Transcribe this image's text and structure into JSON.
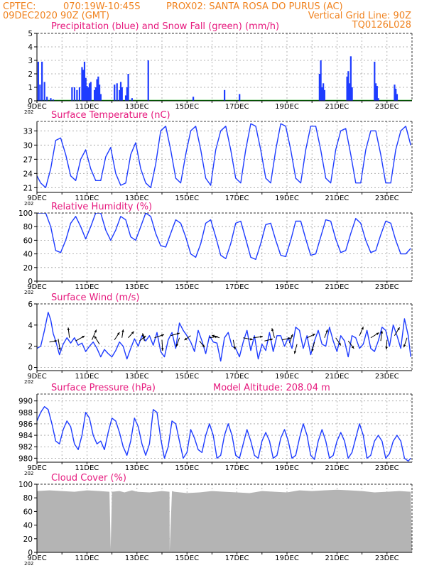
{
  "header": {
    "line1_left": "CPTEC:",
    "line1_coords": "070:19W-10:45S",
    "line1_station": "PROX02: SANTA ROSA DO PURUS (AC)",
    "line2_left": "09DEC2020 90Z (GMT)",
    "line2_right": "Vertical Grid Line: 90Z",
    "line3_right": "TQ0126L028"
  },
  "colors": {
    "header": "#f0821e",
    "panel_title": "#e6197d",
    "series": "#1e3cff",
    "snow": "#00a000",
    "cloud": "#b4b4b4",
    "arrow": "#000000",
    "grid": "#a0a0a0"
  },
  "x_axis": {
    "labels": [
      "9DEC",
      "11DEC",
      "13DEC",
      "15DEC",
      "17DEC",
      "19DEC",
      "21DEC",
      "23DEC"
    ],
    "year_fragment": "202"
  },
  "panels": {
    "precip": {
      "title": "Precipitation (blue) and Snow Fall (green) (mm/h)"
    },
    "temp": {
      "title": "Surface Temperature (nC)"
    },
    "rh": {
      "title": "Relative Humidity (%)"
    },
    "wind": {
      "title": "Surface Wind (m/s)"
    },
    "press": {
      "title": "Surface Pressure (hPa)",
      "subtitle": "Model Altitude: 208.04 m"
    },
    "cloud": {
      "title": "Cloud Cover (%)"
    }
  },
  "chart_data": [
    {
      "id": "precip",
      "type": "bar",
      "title": "Precipitation (blue) and Snow Fall (green) (mm/h)",
      "ylim": [
        0,
        5
      ],
      "yticks": [
        0,
        1,
        2,
        3,
        4,
        5
      ],
      "x_unit": "day offset from 09DEC 00Z",
      "x": [
        0.05,
        0.12,
        0.2,
        0.3,
        0.4,
        0.55,
        0.65,
        1.4,
        1.5,
        1.6,
        1.7,
        1.8,
        1.85,
        1.9,
        1.95,
        2.0,
        2.05,
        2.1,
        2.15,
        2.3,
        2.35,
        2.4,
        2.45,
        2.5,
        2.55,
        3.1,
        3.2,
        3.3,
        3.35,
        3.4,
        3.55,
        3.6,
        3.65,
        3.8,
        4.45,
        6.25,
        7.5,
        8.1,
        11.3,
        11.35,
        11.4,
        11.45,
        11.5,
        12.4,
        12.45,
        12.5,
        12.55,
        12.6,
        13.5,
        13.55,
        13.6,
        13.65,
        14.3,
        14.35,
        14.4
      ],
      "precip": [
        2.9,
        1.2,
        2.9,
        1.4,
        0.3,
        0.2,
        0.1,
        1.0,
        1.0,
        0.8,
        1.0,
        2.5,
        2.3,
        2.9,
        1.7,
        1.1,
        1.0,
        1.3,
        1.4,
        0.8,
        1.0,
        1.6,
        1.8,
        1.2,
        0.5,
        1.2,
        1.3,
        0.8,
        1.4,
        1.0,
        0.4,
        1.0,
        2.0,
        0.2,
        3.0,
        0.3,
        0.8,
        0.5,
        2.0,
        3.0,
        1.0,
        1.3,
        0.8,
        1.8,
        2.2,
        1.3,
        3.3,
        1.0,
        2.9,
        1.3,
        1.1,
        0.2,
        1.2,
        0.9,
        0.5
      ],
      "snow": []
    },
    {
      "id": "temp",
      "type": "line",
      "title": "Surface Temperature (nC)",
      "ylim": [
        20,
        35
      ],
      "yticks": [
        21,
        24,
        27,
        30,
        33
      ],
      "x_unit": "day offset from 09DEC 00Z",
      "x": [
        0,
        0.15,
        0.35,
        0.55,
        0.75,
        0.95,
        1.15,
        1.35,
        1.55,
        1.75,
        1.95,
        2.15,
        2.35,
        2.55,
        2.75,
        2.95,
        3.15,
        3.35,
        3.55,
        3.75,
        3.95,
        4.15,
        4.35,
        4.55,
        4.75,
        4.95,
        5.15,
        5.35,
        5.55,
        5.75,
        5.95,
        6.15,
        6.35,
        6.55,
        6.75,
        6.95,
        7.15,
        7.35,
        7.55,
        7.75,
        7.95,
        8.15,
        8.35,
        8.55,
        8.75,
        8.95,
        9.15,
        9.35,
        9.55,
        9.75,
        9.95,
        10.15,
        10.35,
        10.55,
        10.75,
        10.95,
        11.15,
        11.35,
        11.55,
        11.75,
        11.95,
        12.15,
        12.35,
        12.55,
        12.75,
        12.95,
        13.15,
        13.35,
        13.55,
        13.75,
        13.95,
        14.15,
        14.35,
        14.55,
        14.75,
        14.95
      ],
      "y": [
        23.5,
        22,
        21,
        25,
        31,
        31.5,
        28,
        23.5,
        22.5,
        27,
        29,
        25,
        22.5,
        22.5,
        27.5,
        29.5,
        24,
        21.5,
        22,
        28,
        30.5,
        25,
        22,
        21,
        26,
        33,
        34,
        29,
        23,
        22,
        28,
        33,
        34,
        29,
        23,
        21.5,
        29,
        33,
        34,
        29,
        23,
        22,
        29,
        34.5,
        34,
        29,
        23,
        22,
        29,
        34.5,
        34,
        29,
        23,
        22,
        29,
        34,
        34,
        29,
        23,
        22,
        29,
        33,
        33.5,
        28,
        22,
        22,
        29,
        33,
        33,
        28,
        22,
        22,
        29,
        33,
        34,
        30
      ]
    },
    {
      "id": "rh",
      "type": "line",
      "title": "Relative Humidity (%)",
      "ylim": [
        0,
        100
      ],
      "yticks": [
        0,
        20,
        40,
        60,
        80,
        100
      ],
      "x_unit": "day offset from 09DEC 00Z",
      "x": [
        0,
        0.15,
        0.35,
        0.55,
        0.75,
        0.95,
        1.15,
        1.35,
        1.55,
        1.75,
        1.95,
        2.15,
        2.35,
        2.55,
        2.75,
        2.95,
        3.15,
        3.35,
        3.55,
        3.75,
        3.95,
        4.15,
        4.35,
        4.55,
        4.75,
        4.95,
        5.15,
        5.35,
        5.55,
        5.75,
        5.95,
        6.15,
        6.35,
        6.55,
        6.75,
        6.95,
        7.15,
        7.35,
        7.55,
        7.75,
        7.95,
        8.15,
        8.35,
        8.55,
        8.75,
        8.95,
        9.15,
        9.35,
        9.55,
        9.75,
        9.95,
        10.15,
        10.35,
        10.55,
        10.75,
        10.95,
        11.15,
        11.35,
        11.55,
        11.75,
        11.95,
        12.15,
        12.35,
        12.55,
        12.75,
        12.95,
        13.15,
        13.35,
        13.55,
        13.75,
        13.95,
        14.15,
        14.35,
        14.55,
        14.75,
        14.95
      ],
      "y": [
        100,
        100,
        100,
        80,
        45,
        42,
        60,
        85,
        95,
        80,
        62,
        80,
        100,
        100,
        75,
        60,
        75,
        95,
        90,
        65,
        60,
        80,
        100,
        95,
        70,
        52,
        50,
        70,
        90,
        85,
        65,
        40,
        35,
        55,
        85,
        90,
        65,
        38,
        33,
        55,
        85,
        88,
        62,
        35,
        32,
        55,
        83,
        85,
        60,
        38,
        36,
        60,
        88,
        88,
        62,
        38,
        40,
        65,
        90,
        88,
        62,
        42,
        45,
        70,
        92,
        85,
        60,
        42,
        45,
        68,
        88,
        85,
        60,
        40,
        40,
        48
      ]
    },
    {
      "id": "wind",
      "type": "line",
      "title": "Surface Wind (m/s)",
      "ylim": [
        -0.3,
        6
      ],
      "yticks": [
        0,
        2,
        4,
        6
      ],
      "x_unit": "day offset from 09DEC 00Z",
      "x": [
        0,
        0.15,
        0.3,
        0.45,
        0.55,
        0.65,
        0.75,
        0.9,
        1.05,
        1.2,
        1.35,
        1.5,
        1.65,
        1.8,
        1.95,
        2.1,
        2.25,
        2.4,
        2.55,
        2.7,
        2.85,
        3.0,
        3.15,
        3.3,
        3.45,
        3.6,
        3.75,
        3.9,
        4.05,
        4.2,
        4.35,
        4.5,
        4.65,
        4.8,
        4.95,
        5.1,
        5.25,
        5.4,
        5.55,
        5.7,
        5.85,
        6.0,
        6.15,
        6.3,
        6.45,
        6.6,
        6.75,
        6.9,
        7.05,
        7.2,
        7.35,
        7.5,
        7.65,
        7.8,
        7.95,
        8.1,
        8.25,
        8.4,
        8.55,
        8.7,
        8.85,
        9.0,
        9.15,
        9.3,
        9.45,
        9.6,
        9.75,
        9.9,
        10.05,
        10.2,
        10.35,
        10.5,
        10.65,
        10.8,
        10.95,
        11.1,
        11.25,
        11.4,
        11.55,
        11.7,
        11.85,
        12.0,
        12.15,
        12.3,
        12.45,
        12.6,
        12.75,
        12.9,
        13.05,
        13.2,
        13.35,
        13.5,
        13.65,
        13.8,
        13.95,
        14.1,
        14.25,
        14.4,
        14.55,
        14.7,
        14.85,
        14.95
      ],
      "y": [
        1.8,
        2.0,
        3.5,
        5.2,
        4.5,
        3.2,
        2.5,
        1.2,
        2.2,
        2.8,
        2.3,
        2.8,
        2.1,
        2.3,
        1.5,
        2.0,
        2.4,
        1.8,
        1.0,
        1.7,
        1.3,
        1.0,
        1.6,
        2.4,
        2.0,
        0.8,
        1.8,
        2.7,
        2.0,
        3.0,
        2.5,
        3.0,
        2.1,
        3.3,
        1.5,
        1.0,
        2.6,
        3.3,
        1.8,
        4.2,
        3.5,
        3.0,
        2.4,
        1.5,
        3.5,
        2.5,
        1.3,
        3.0,
        2.4,
        2.3,
        0.6,
        2.8,
        3.3,
        2.0,
        1.8,
        1.0,
        2.4,
        3.5,
        1.6,
        3.0,
        0.8,
        2.2,
        1.6,
        3.3,
        1.5,
        3.0,
        3.0,
        2.0,
        2.8,
        1.8,
        3.8,
        3.5,
        1.8,
        3.0,
        1.2,
        2.5,
        3.5,
        2.2,
        2.0,
        3.8,
        2.5,
        1.5,
        3.0,
        2.5,
        1.0,
        3.0,
        2.8,
        1.8,
        2.2,
        3.5,
        1.8,
        1.5,
        2.5,
        3.8,
        3.5,
        2.0,
        4.0,
        3.0,
        1.8,
        4.6,
        3.0,
        1.0
      ],
      "barbs": [
        {
          "x": 0.5,
          "y": 2.4,
          "u": 1.2,
          "v": 0.2
        },
        {
          "x": 0.85,
          "y": 2.7,
          "u": 0.3,
          "v": -1.8
        },
        {
          "x": 1.3,
          "y": 2.8,
          "u": -0.2,
          "v": 1.6
        },
        {
          "x": 1.55,
          "y": 2.5,
          "u": 1.4,
          "v": 0.8
        },
        {
          "x": 2.2,
          "y": 2.6,
          "u": 0.7,
          "v": 1.6
        },
        {
          "x": 2.5,
          "y": 2.2,
          "u": -0.8,
          "v": 1.3
        },
        {
          "x": 3.1,
          "y": 2.6,
          "u": 0.8,
          "v": 1.2
        },
        {
          "x": 3.4,
          "y": 2.8,
          "u": 0.2,
          "v": 1.3
        },
        {
          "x": 3.65,
          "y": 2.8,
          "u": 0.9,
          "v": 1.0
        },
        {
          "x": 4.1,
          "y": 2.5,
          "u": 1.0,
          "v": 0.8
        },
        {
          "x": 4.3,
          "y": 2.5,
          "u": -0.3,
          "v": 1.2
        },
        {
          "x": 4.7,
          "y": 2.8,
          "u": 1.5,
          "v": 0.5
        },
        {
          "x": 5.0,
          "y": 2.6,
          "u": 0.1,
          "v": -1.7
        },
        {
          "x": 5.35,
          "y": 3.0,
          "u": 1.4,
          "v": 0.4
        },
        {
          "x": 5.7,
          "y": 2.8,
          "u": -0.5,
          "v": -1.4
        },
        {
          "x": 6.15,
          "y": 3.0,
          "u": -1.0,
          "v": -0.7
        },
        {
          "x": 6.5,
          "y": 2.5,
          "u": 0.8,
          "v": -1.0
        },
        {
          "x": 6.9,
          "y": 2.8,
          "u": 1.3,
          "v": 0.2
        },
        {
          "x": 7.3,
          "y": 2.8,
          "u": -1.2,
          "v": 0.4
        },
        {
          "x": 7.85,
          "y": 2.6,
          "u": 0.3,
          "v": -1.5
        },
        {
          "x": 8.25,
          "y": 2.8,
          "u": 1.5,
          "v": -0.3
        },
        {
          "x": 8.65,
          "y": 2.8,
          "u": 1.5,
          "v": 0.2
        },
        {
          "x": 9.1,
          "y": 2.5,
          "u": 1.3,
          "v": 0.3
        },
        {
          "x": 9.5,
          "y": 2.8,
          "u": -0.4,
          "v": 1.5
        },
        {
          "x": 9.8,
          "y": 2.6,
          "u": 1.4,
          "v": 0.3
        },
        {
          "x": 10.1,
          "y": 2.3,
          "u": 0.5,
          "v": 1.4
        },
        {
          "x": 10.4,
          "y": 2.2,
          "u": -0.4,
          "v": -1.5
        },
        {
          "x": 10.8,
          "y": 2.8,
          "u": 1.3,
          "v": 0.6
        },
        {
          "x": 11.1,
          "y": 2.4,
          "u": -0.4,
          "v": -1.5
        },
        {
          "x": 11.5,
          "y": 2.8,
          "u": 0.5,
          "v": 1.3
        },
        {
          "x": 11.95,
          "y": 2.8,
          "u": 0.8,
          "v": -1.2
        },
        {
          "x": 12.45,
          "y": 2.5,
          "u": 0.9,
          "v": -1.2
        },
        {
          "x": 12.9,
          "y": 3.0,
          "u": 0.6,
          "v": 1.4
        },
        {
          "x": 13.35,
          "y": 2.8,
          "u": 1.3,
          "v": 0.8
        },
        {
          "x": 13.75,
          "y": 2.5,
          "u": 0.2,
          "v": 1.6
        },
        {
          "x": 14.0,
          "y": 2.6,
          "u": -0.1,
          "v": -1.5
        },
        {
          "x": 14.3,
          "y": 3.0,
          "u": 0.8,
          "v": 1.3
        },
        {
          "x": 14.8,
          "y": 2.8,
          "u": -0.5,
          "v": -1.5
        }
      ]
    },
    {
      "id": "press",
      "type": "line",
      "title": "Surface Pressure (hPa)",
      "ylim": [
        979.3,
        991.2
      ],
      "yticks": [
        980,
        982,
        984,
        986,
        988,
        990
      ],
      "x_unit": "day offset from 09DEC 00Z",
      "x": [
        0,
        0.15,
        0.3,
        0.45,
        0.6,
        0.75,
        0.9,
        1.05,
        1.2,
        1.35,
        1.5,
        1.65,
        1.8,
        1.95,
        2.1,
        2.25,
        2.4,
        2.55,
        2.7,
        2.85,
        3.0,
        3.15,
        3.3,
        3.45,
        3.6,
        3.75,
        3.9,
        4.05,
        4.2,
        4.35,
        4.5,
        4.65,
        4.8,
        4.95,
        5.1,
        5.25,
        5.4,
        5.55,
        5.7,
        5.85,
        6.0,
        6.15,
        6.3,
        6.45,
        6.6,
        6.75,
        6.9,
        7.05,
        7.2,
        7.35,
        7.5,
        7.65,
        7.8,
        7.95,
        8.1,
        8.25,
        8.4,
        8.55,
        8.7,
        8.85,
        9.0,
        9.15,
        9.3,
        9.45,
        9.6,
        9.75,
        9.9,
        10.05,
        10.2,
        10.35,
        10.5,
        10.65,
        10.8,
        10.95,
        11.1,
        11.25,
        11.4,
        11.55,
        11.7,
        11.85,
        12.0,
        12.15,
        12.3,
        12.45,
        12.6,
        12.75,
        12.9,
        13.05,
        13.2,
        13.35,
        13.5,
        13.65,
        13.8,
        13.95,
        14.1,
        14.25,
        14.4,
        14.55,
        14.7,
        14.85,
        14.95
      ],
      "y": [
        986.5,
        988,
        989,
        988.5,
        986,
        983,
        982.5,
        985,
        986.5,
        985.5,
        982.5,
        981.5,
        984,
        988,
        987,
        984,
        982.5,
        983,
        981.5,
        984.5,
        987,
        986.5,
        984.5,
        982,
        980.5,
        983,
        987,
        985.5,
        982.5,
        980.5,
        982.5,
        988.5,
        988,
        983.5,
        980,
        982,
        986.5,
        986,
        983,
        980,
        981,
        985,
        983.5,
        981.5,
        981,
        984,
        986,
        984,
        980,
        980.5,
        984,
        986,
        984,
        980.5,
        980,
        982.5,
        985,
        983,
        980.5,
        980,
        983,
        984.5,
        983,
        980,
        980.5,
        983.5,
        985,
        983,
        980,
        980.5,
        983.5,
        986,
        984,
        980.5,
        979.8,
        983,
        985,
        983,
        980,
        980.5,
        983,
        984.5,
        983,
        980,
        981,
        983.5,
        986,
        984,
        980,
        980.5,
        983,
        984,
        983,
        980,
        980.8,
        983,
        984,
        983,
        980,
        979.5,
        980
      ]
    },
    {
      "id": "cloud",
      "type": "area",
      "title": "Cloud Cover (%)",
      "ylim": [
        0,
        100
      ],
      "yticks": [
        0,
        20,
        40,
        60,
        80,
        100
      ],
      "x_unit": "day offset from 09DEC 00Z",
      "x": [
        0,
        0.5,
        1.0,
        1.5,
        2.0,
        2.5,
        2.9,
        2.95,
        3.0,
        3.3,
        3.5,
        3.8,
        4.0,
        4.5,
        5.0,
        5.3,
        5.31,
        5.4,
        5.5,
        6.0,
        6.5,
        7.0,
        7.5,
        8.0,
        8.5,
        9.0,
        9.5,
        10.0,
        10.5,
        11.0,
        11.5,
        12.0,
        12.5,
        13.0,
        13.5,
        14.0,
        14.5,
        14.95
      ],
      "y": [
        90,
        91,
        90,
        89,
        91,
        90,
        89,
        5,
        89,
        90,
        88,
        91,
        89,
        88,
        90,
        89,
        2,
        90,
        89,
        87,
        88,
        90,
        89,
        88,
        87,
        90,
        89,
        88,
        91,
        90,
        91,
        92,
        91,
        90,
        88,
        89,
        90,
        89
      ]
    }
  ]
}
